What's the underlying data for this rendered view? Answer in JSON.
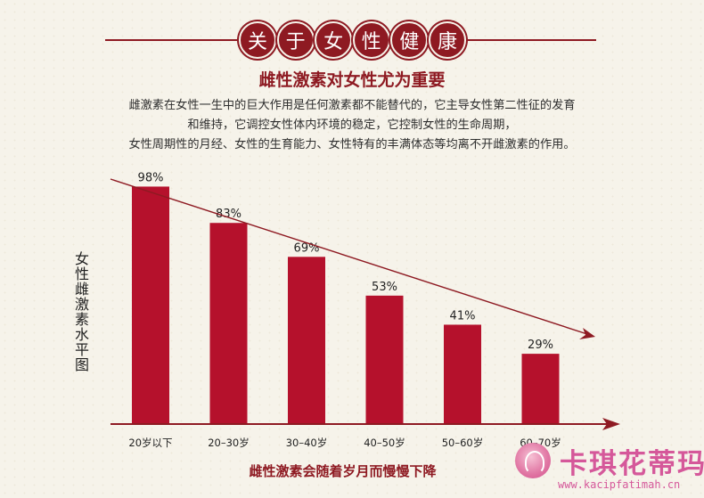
{
  "header": {
    "chars": [
      "关",
      "于",
      "女",
      "性",
      "健",
      "康"
    ]
  },
  "subtitle": "雌性激素对女性尤为重要",
  "intro": [
    "雌激素在女性一生中的巨大作用是任何激素都不能替代的，它主导女性第二性征的发育",
    "和维持，它调控女性体内环境的稳定，它控制女性的生命周期，",
    "女性周期性的月经、女性的生育能力、女性特有的丰满体态等均离不开雌激素的作用。"
  ],
  "colors": {
    "accent": "#8e1a22",
    "bar": "#b5112c",
    "logo": "#d5589a"
  },
  "chart_data": {
    "type": "bar",
    "categories": [
      "20岁以下",
      "20–30岁",
      "30–40岁",
      "40–50岁",
      "50–60岁",
      "60–70岁"
    ],
    "values": [
      98,
      83,
      69,
      53,
      41,
      29
    ],
    "value_labels": [
      "98%",
      "83%",
      "69%",
      "53%",
      "41%",
      "29%"
    ],
    "ylabel": "女性雌激素水平图",
    "ylim": [
      0,
      100
    ],
    "grid": false,
    "trend_arrow": true,
    "caption": "雌性激素会随着岁月而慢慢下降"
  },
  "logo": {
    "name": "卡琪花蒂玛",
    "url": "www.kacipfatimah.cn"
  }
}
